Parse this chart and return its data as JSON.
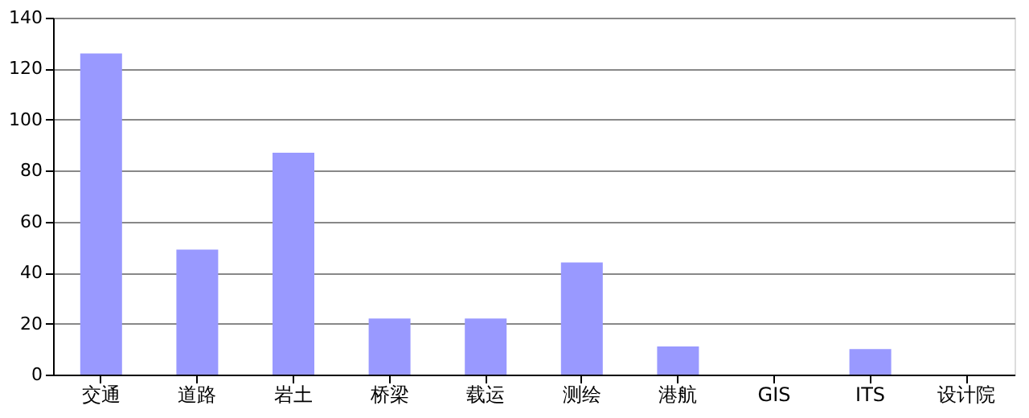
{
  "chart_data": {
    "type": "bar",
    "categories": [
      "交通",
      "道路",
      "岩土",
      "桥梁",
      "载运",
      "测绘",
      "港航",
      "GIS",
      "ITS",
      "设计院"
    ],
    "values": [
      126,
      49,
      87,
      22,
      22,
      44,
      11,
      0,
      10,
      0
    ],
    "color": "#9999ff",
    "ylim": [
      0,
      140
    ],
    "yticks": [
      0,
      20,
      40,
      60,
      80,
      100,
      120,
      140
    ],
    "grid": "y"
  }
}
